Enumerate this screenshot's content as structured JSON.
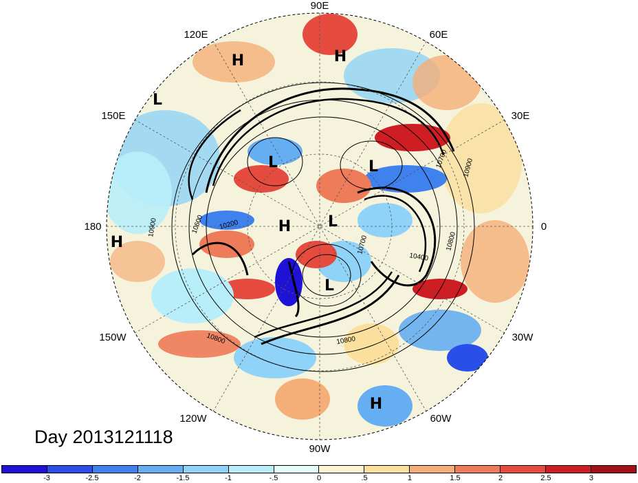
{
  "title": "Day 2013121118",
  "longitude_labels": {
    "lon_90E": "90E",
    "lon_60E": "60E",
    "lon_30E": "30E",
    "lon_0": "0",
    "lon_30W": "30W",
    "lon_60W": "60W",
    "lon_90W": "90W",
    "lon_120W": "120W",
    "lon_150W": "150W",
    "lon_180": "180",
    "lon_150E": "150E",
    "lon_120E": "120E"
  },
  "pressure_centers": [
    {
      "label": "H",
      "id": "h-120e"
    },
    {
      "label": "H",
      "id": "h-70e"
    },
    {
      "label": "L",
      "id": "l-145e"
    },
    {
      "label": "L",
      "id": "l-east-siberia"
    },
    {
      "label": "L",
      "id": "l-barents"
    },
    {
      "label": "H",
      "id": "h-pole"
    },
    {
      "label": "L",
      "id": "l-greenland"
    },
    {
      "label": "H",
      "id": "h-180"
    },
    {
      "label": "L",
      "id": "l-canada"
    },
    {
      "label": "H",
      "id": "h-south-america"
    }
  ],
  "contour_labels": {
    "c1": "10600",
    "c2": "10200",
    "c3": "10900",
    "c4": "10800",
    "c5": "10700",
    "c6": "10900",
    "c7": "10800",
    "c8": "10400",
    "c9": "10700",
    "c10": "10800"
  },
  "colorbar": {
    "colors": [
      "#1f12d6",
      "#2a4ee8",
      "#3f82ee",
      "#66aef2",
      "#8fd3f8",
      "#b8eef9",
      "#e2fbfb",
      "#fbf5d2",
      "#fbdf9d",
      "#f5ae78",
      "#ee7b59",
      "#e54b3e",
      "#cf1d24",
      "#a31018"
    ],
    "tick_labels": [
      "-3",
      "-2.5",
      "-2",
      "-1.5",
      "-1",
      "-.5",
      "0",
      ".5",
      "1",
      "1.5",
      "2",
      "2.5",
      "3"
    ]
  }
}
